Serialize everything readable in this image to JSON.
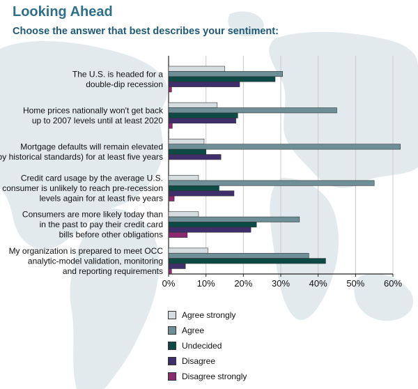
{
  "title": "Looking Ahead",
  "subtitle": "Choose the answer that best describes your sentiment:",
  "colors": {
    "title": "#2f6f8a",
    "subtitle": "#1f5a76",
    "map": "#e3eaee",
    "gridline": "#c9c9c9"
  },
  "chart_data": {
    "type": "bar",
    "orientation": "horizontal",
    "xlim": [
      0,
      60
    ],
    "x_ticks": [
      "0%",
      "10%",
      "20%",
      "30%",
      "40%",
      "50%",
      "60%"
    ],
    "grid": true,
    "legend_position": "bottom",
    "categories": [
      [
        "The U.S. is headed for a",
        "double-dip recession"
      ],
      [
        "Home prices nationally won't get back",
        "up to 2007 levels until at least 2020"
      ],
      [
        "Mortgage defaults will remain elevated",
        "(by historical standards) for at least five years"
      ],
      [
        "Credit card usage by the average U.S.",
        "consumer is unlikely to reach pre-recession",
        "levels again for at least five years"
      ],
      [
        "Consumers are more likely today than",
        "in the past to pay their credit card",
        "bills before other obligations"
      ],
      [
        "My organization is prepared to meet OCC",
        "analytic-model validation, monitoring",
        "and reporting requirements"
      ]
    ],
    "series": [
      {
        "name": "Agree strongly",
        "color": "#d5dde1",
        "values": [
          15,
          13,
          9.5,
          8,
          8,
          10.5
        ]
      },
      {
        "name": "Agree",
        "color": "#6f8f98",
        "values": [
          30.5,
          45,
          62,
          55,
          35,
          37.5
        ]
      },
      {
        "name": "Undecided",
        "color": "#0e4a45",
        "values": [
          28.5,
          18.5,
          10,
          13.5,
          23.5,
          42
        ]
      },
      {
        "name": "Disagree",
        "color": "#3e2f6b",
        "values": [
          19,
          18,
          14,
          17.5,
          22,
          4.5
        ]
      },
      {
        "name": "Disagree strongly",
        "color": "#8a2b6f",
        "values": [
          0.8,
          1,
          0,
          1.5,
          5,
          0.8
        ]
      }
    ]
  }
}
